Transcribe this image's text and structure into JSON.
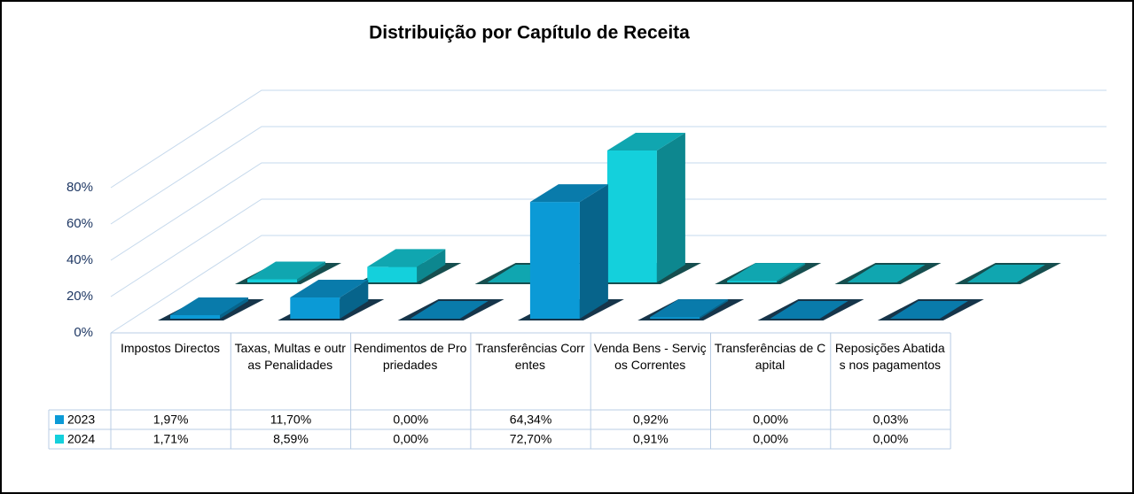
{
  "chart_data": {
    "type": "bar3d",
    "title": "Distribuição por Capítulo de Receita",
    "categories": [
      "Impostos Directos",
      "Taxas, Multas e outras Penalidades",
      "Rendimentos de Propriedades",
      "Transferências Correntes",
      "Venda Bens - Serviços Correntes",
      "Transferências de Capital",
      "Reposições Abatidas nos pagamentos"
    ],
    "series": [
      {
        "name": "2023",
        "color": "#0b9ad6",
        "values": [
          1.97,
          11.7,
          0,
          64.34,
          0.92,
          0,
          0.03
        ],
        "value_labels": [
          "1,97%",
          "11,70%",
          "0,00%",
          "64,34%",
          "0,92%",
          "0,00%",
          "0,03%"
        ]
      },
      {
        "name": "2024",
        "color": "#14d0dc",
        "values": [
          1.71,
          8.59,
          0,
          72.7,
          0.91,
          0,
          0.0
        ],
        "value_labels": [
          "1,71%",
          "8,59%",
          "0,00%",
          "72,70%",
          "0,91%",
          "0,00%",
          "0,00%"
        ]
      }
    ],
    "ylim": [
      0,
      80
    ],
    "yticks": [
      {
        "value": 0,
        "label": "0%"
      },
      {
        "value": 20,
        "label": "20%"
      },
      {
        "value": 40,
        "label": "40%"
      },
      {
        "value": 60,
        "label": "60%"
      },
      {
        "value": 80,
        "label": "80%"
      }
    ],
    "grid": true
  }
}
